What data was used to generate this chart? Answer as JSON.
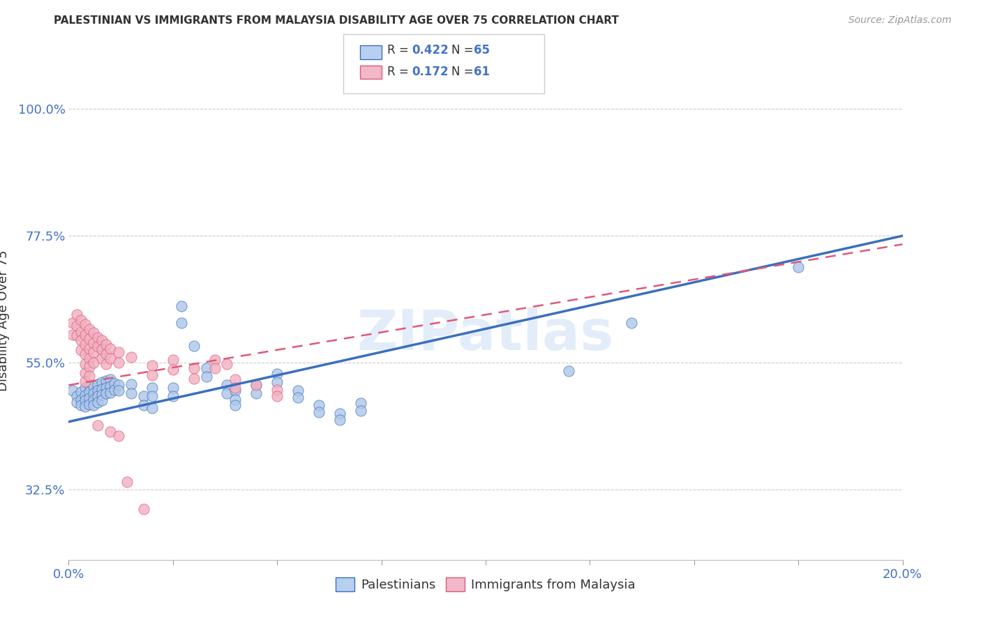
{
  "title": "PALESTINIAN VS IMMIGRANTS FROM MALAYSIA DISABILITY AGE OVER 75 CORRELATION CHART",
  "source": "Source: ZipAtlas.com",
  "ylabel": "Disability Age Over 75",
  "watermark": "ZIPatlas",
  "blue_color": "#aec6e8",
  "pink_color": "#f0b0c0",
  "line_blue": "#3a6fbe",
  "line_pink": "#e05878",
  "legend_blue_fill": "#b8d0f0",
  "legend_pink_fill": "#f0b8c8",
  "blue_scatter": [
    [
      0.001,
      0.5
    ],
    [
      0.002,
      0.49
    ],
    [
      0.002,
      0.48
    ],
    [
      0.003,
      0.498
    ],
    [
      0.003,
      0.485
    ],
    [
      0.003,
      0.475
    ],
    [
      0.004,
      0.505
    ],
    [
      0.004,
      0.492
    ],
    [
      0.004,
      0.483
    ],
    [
      0.004,
      0.472
    ],
    [
      0.005,
      0.51
    ],
    [
      0.005,
      0.498
    ],
    [
      0.005,
      0.487
    ],
    [
      0.005,
      0.476
    ],
    [
      0.006,
      0.508
    ],
    [
      0.006,
      0.495
    ],
    [
      0.006,
      0.485
    ],
    [
      0.006,
      0.475
    ],
    [
      0.007,
      0.512
    ],
    [
      0.007,
      0.5
    ],
    [
      0.007,
      0.49
    ],
    [
      0.007,
      0.48
    ],
    [
      0.008,
      0.515
    ],
    [
      0.008,
      0.503
    ],
    [
      0.008,
      0.493
    ],
    [
      0.008,
      0.483
    ],
    [
      0.009,
      0.518
    ],
    [
      0.009,
      0.505
    ],
    [
      0.009,
      0.495
    ],
    [
      0.01,
      0.52
    ],
    [
      0.01,
      0.508
    ],
    [
      0.01,
      0.497
    ],
    [
      0.011,
      0.513
    ],
    [
      0.011,
      0.502
    ],
    [
      0.012,
      0.51
    ],
    [
      0.012,
      0.5
    ],
    [
      0.015,
      0.512
    ],
    [
      0.015,
      0.495
    ],
    [
      0.018,
      0.49
    ],
    [
      0.018,
      0.475
    ],
    [
      0.02,
      0.505
    ],
    [
      0.02,
      0.49
    ],
    [
      0.02,
      0.47
    ],
    [
      0.025,
      0.505
    ],
    [
      0.025,
      0.49
    ],
    [
      0.027,
      0.65
    ],
    [
      0.027,
      0.62
    ],
    [
      0.03,
      0.58
    ],
    [
      0.033,
      0.54
    ],
    [
      0.033,
      0.525
    ],
    [
      0.038,
      0.51
    ],
    [
      0.038,
      0.495
    ],
    [
      0.04,
      0.5
    ],
    [
      0.04,
      0.485
    ],
    [
      0.04,
      0.475
    ],
    [
      0.045,
      0.51
    ],
    [
      0.045,
      0.495
    ],
    [
      0.05,
      0.53
    ],
    [
      0.05,
      0.515
    ],
    [
      0.055,
      0.5
    ],
    [
      0.055,
      0.488
    ],
    [
      0.06,
      0.475
    ],
    [
      0.06,
      0.462
    ],
    [
      0.065,
      0.46
    ],
    [
      0.065,
      0.448
    ],
    [
      0.07,
      0.478
    ],
    [
      0.07,
      0.465
    ],
    [
      0.12,
      0.535
    ],
    [
      0.135,
      0.62
    ],
    [
      0.175,
      0.72
    ]
  ],
  "pink_scatter": [
    [
      0.001,
      0.62
    ],
    [
      0.001,
      0.6
    ],
    [
      0.002,
      0.635
    ],
    [
      0.002,
      0.615
    ],
    [
      0.002,
      0.598
    ],
    [
      0.003,
      0.625
    ],
    [
      0.003,
      0.605
    ],
    [
      0.003,
      0.59
    ],
    [
      0.003,
      0.572
    ],
    [
      0.004,
      0.618
    ],
    [
      0.004,
      0.6
    ],
    [
      0.004,
      0.582
    ],
    [
      0.004,
      0.565
    ],
    [
      0.004,
      0.548
    ],
    [
      0.004,
      0.532
    ],
    [
      0.004,
      0.517
    ],
    [
      0.005,
      0.61
    ],
    [
      0.005,
      0.592
    ],
    [
      0.005,
      0.575
    ],
    [
      0.005,
      0.558
    ],
    [
      0.005,
      0.542
    ],
    [
      0.005,
      0.527
    ],
    [
      0.006,
      0.603
    ],
    [
      0.006,
      0.585
    ],
    [
      0.006,
      0.568
    ],
    [
      0.006,
      0.55
    ],
    [
      0.007,
      0.595
    ],
    [
      0.007,
      0.578
    ],
    [
      0.008,
      0.59
    ],
    [
      0.008,
      0.573
    ],
    [
      0.008,
      0.557
    ],
    [
      0.009,
      0.582
    ],
    [
      0.009,
      0.565
    ],
    [
      0.009,
      0.548
    ],
    [
      0.01,
      0.575
    ],
    [
      0.01,
      0.558
    ],
    [
      0.012,
      0.568
    ],
    [
      0.012,
      0.55
    ],
    [
      0.015,
      0.56
    ],
    [
      0.02,
      0.545
    ],
    [
      0.02,
      0.528
    ],
    [
      0.025,
      0.555
    ],
    [
      0.025,
      0.538
    ],
    [
      0.03,
      0.54
    ],
    [
      0.03,
      0.522
    ],
    [
      0.035,
      0.555
    ],
    [
      0.035,
      0.54
    ],
    [
      0.038,
      0.548
    ],
    [
      0.04,
      0.52
    ],
    [
      0.04,
      0.505
    ],
    [
      0.045,
      0.51
    ],
    [
      0.05,
      0.502
    ],
    [
      0.05,
      0.49
    ],
    [
      0.007,
      0.438
    ],
    [
      0.01,
      0.428
    ],
    [
      0.012,
      0.42
    ],
    [
      0.014,
      0.338
    ],
    [
      0.018,
      0.29
    ]
  ],
  "xlim": [
    0.0,
    0.2
  ],
  "ylim": [
    0.2,
    1.05
  ],
  "x_ticks": [
    0.0,
    0.025,
    0.05,
    0.075,
    0.1,
    0.125,
    0.15,
    0.175,
    0.2
  ],
  "y_ticks": [
    0.325,
    0.55,
    0.775,
    1.0
  ],
  "y_labels": [
    "32.5%",
    "55.0%",
    "77.5%",
    "100.0%"
  ],
  "blue_line_x": [
    0.0,
    0.2
  ],
  "blue_line_y": [
    0.445,
    0.775
  ],
  "pink_line_x": [
    0.0,
    0.2
  ],
  "pink_line_y": [
    0.51,
    0.76
  ]
}
